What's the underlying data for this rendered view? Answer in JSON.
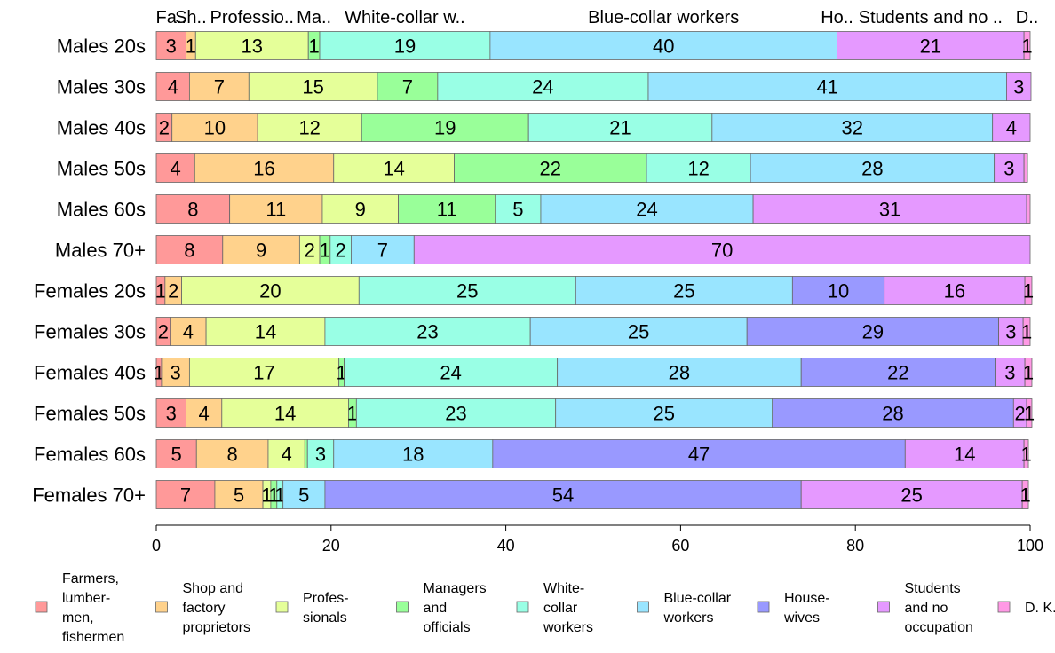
{
  "chart_data": {
    "type": "bar",
    "orientation": "horizontal",
    "stacked": true,
    "xlim": [
      0,
      100
    ],
    "x_ticks": [
      "0",
      "20",
      "40",
      "60",
      "80",
      "100"
    ],
    "grid": false,
    "legend_position": "bottom",
    "top_labels": [
      "Fa..",
      "Sh..",
      "Professio..",
      "Ma..",
      "White-collar w..",
      "Blue-collar workers",
      "Ho..",
      "Students and no ..",
      "D.."
    ],
    "categories": [
      "Males 20s",
      "Males 30s",
      "Males 40s",
      "Males 50s",
      "Males 60s",
      "Males 70+",
      "Females 20s",
      "Females 30s",
      "Females 40s",
      "Females 50s",
      "Females 60s",
      "Females 70+"
    ],
    "series": [
      {
        "name": "Farmers, lumbermen, fishermen",
        "color": "#ff9999",
        "values": [
          3.4,
          3.8,
          1.8,
          4.4,
          8.4,
          7.6,
          1.0,
          1.6,
          0.6,
          3.4,
          4.6,
          6.7
        ],
        "labels": [
          "3",
          "4",
          "2",
          "4",
          "8",
          "8",
          "1",
          "2",
          "1",
          "3",
          "5",
          "7"
        ]
      },
      {
        "name": "Shop and factory proprietors",
        "color": "#ffd28c",
        "values": [
          1.1,
          6.8,
          9.8,
          15.9,
          10.6,
          8.8,
          1.9,
          4.1,
          3.2,
          4.1,
          8.2,
          5.5
        ],
        "labels": [
          "1",
          "7",
          "10",
          "16",
          "11",
          "9",
          "2",
          "4",
          "3",
          "4",
          "8",
          "5"
        ]
      },
      {
        "name": "Professionals",
        "color": "#e5ff99",
        "values": [
          12.9,
          14.7,
          11.9,
          13.8,
          8.7,
          2.3,
          20.3,
          13.6,
          17.1,
          14.5,
          4.2,
          0.9
        ],
        "labels": [
          "13",
          "15",
          "12",
          "14",
          "9",
          "2",
          "20",
          "14",
          "17",
          "14",
          "4",
          "1"
        ]
      },
      {
        "name": "Managers and officials",
        "color": "#99ff99",
        "values": [
          1.3,
          6.9,
          19.1,
          22.0,
          11.1,
          1.2,
          0.0,
          0.0,
          0.6,
          0.9,
          0.3,
          0.7
        ],
        "labels": [
          "1",
          "7",
          "19",
          "22",
          "11",
          "1",
          "",
          "",
          "1",
          "1",
          "",
          "1"
        ]
      },
      {
        "name": "White-collar workers",
        "color": "#99ffe5",
        "values": [
          19.5,
          24.1,
          21.0,
          11.9,
          5.2,
          2.4,
          24.8,
          23.5,
          24.4,
          22.8,
          3.0,
          0.7
        ],
        "labels": [
          "19",
          "24",
          "21",
          "12",
          "5",
          "2",
          "25",
          "23",
          "24",
          "23",
          "3",
          "1"
        ]
      },
      {
        "name": "Blue-collar workers",
        "color": "#99e5ff",
        "values": [
          39.7,
          41.0,
          32.1,
          27.9,
          24.3,
          7.2,
          24.8,
          24.8,
          27.9,
          24.8,
          18.2,
          4.8
        ],
        "labels": [
          "40",
          "41",
          "32",
          "28",
          "24",
          "7",
          "25",
          "25",
          "28",
          "25",
          "18",
          "5"
        ]
      },
      {
        "name": "Housewives",
        "color": "#9999ff",
        "values": [
          0.0,
          0.0,
          0.0,
          0.0,
          0.0,
          0.0,
          10.5,
          28.8,
          22.2,
          27.6,
          47.2,
          54.5
        ],
        "labels": [
          "",
          "",
          "",
          "",
          "",
          "",
          "10",
          "29",
          "22",
          "28",
          "47",
          "54"
        ]
      },
      {
        "name": "Students and no occupation",
        "color": "#e599ff",
        "values": [
          21.4,
          2.8,
          4.3,
          3.4,
          31.3,
          70.5,
          16.1,
          2.8,
          3.4,
          1.5,
          13.6,
          25.3
        ],
        "labels": [
          "21",
          "3",
          "4",
          "3",
          "31",
          "70",
          "16",
          "3",
          "3",
          "2",
          "14",
          "25"
        ]
      },
      {
        "name": "D. K.",
        "color": "#ff99e5",
        "values": [
          0.7,
          0.0,
          0.0,
          0.4,
          0.4,
          0.0,
          0.8,
          0.8,
          0.8,
          0.6,
          0.5,
          0.7
        ],
        "labels": [
          "1",
          "",
          "",
          "",
          "",
          "",
          "1",
          "1",
          "1",
          "1",
          "1",
          "1"
        ]
      }
    ],
    "legend": [
      {
        "lines": [
          "Farmers,",
          "lumber-",
          "men,",
          "fishermen"
        ],
        "color": "#ff9999"
      },
      {
        "lines": [
          "Shop and",
          "factory",
          "proprietors"
        ],
        "color": "#ffd28c"
      },
      {
        "lines": [
          "Profes-",
          "sionals"
        ],
        "color": "#e5ff99"
      },
      {
        "lines": [
          "Managers",
          "and",
          "officials"
        ],
        "color": "#99ff99"
      },
      {
        "lines": [
          "White-",
          "collar",
          "workers"
        ],
        "color": "#99ffe5"
      },
      {
        "lines": [
          "Blue-collar",
          "workers"
        ],
        "color": "#99e5ff"
      },
      {
        "lines": [
          "House-",
          "wives"
        ],
        "color": "#9999ff"
      },
      {
        "lines": [
          "Students",
          "and no",
          "occupation"
        ],
        "color": "#e599ff"
      },
      {
        "lines": [
          "D. K."
        ],
        "color": "#ff99e5"
      }
    ]
  }
}
